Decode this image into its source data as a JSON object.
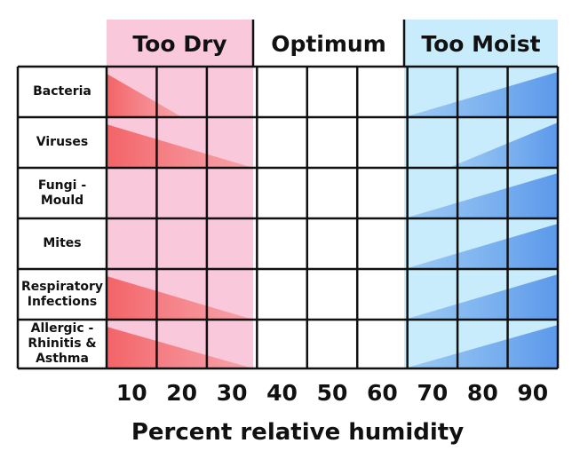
{
  "header": {
    "zones": [
      "Too Dry",
      "Optimum",
      "Too Moist"
    ]
  },
  "rows": [
    "Bacteria",
    "Viruses",
    "Fungi - Mould",
    "Mites",
    "Respiratory Infections",
    "Allergic - Rhinitis & Asthma"
  ],
  "x_axis": {
    "ticks": [
      "10",
      "20",
      "30",
      "40",
      "50",
      "60",
      "70",
      "80",
      "90"
    ],
    "label": "Percent relative humidity"
  }
}
